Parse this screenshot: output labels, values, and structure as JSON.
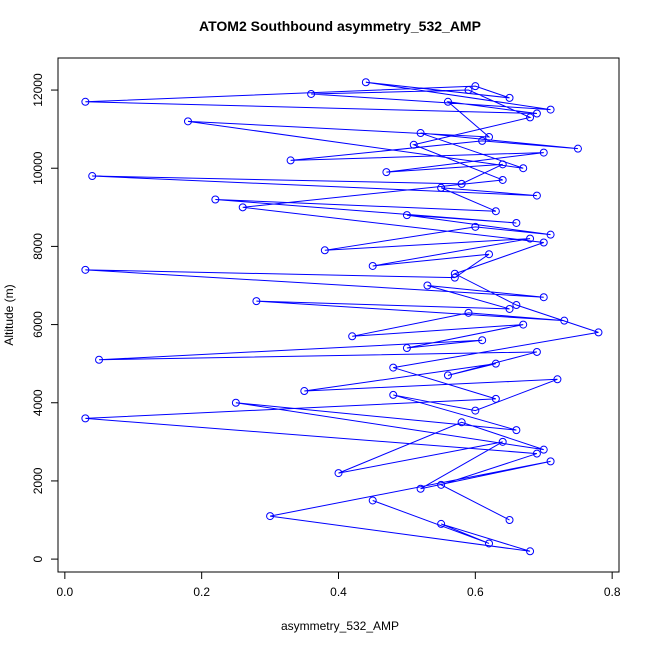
{
  "chart_data": {
    "type": "line",
    "title": "ATOM2 Southbound asymmetry_532_AMP",
    "x_label": "asymmetry_532_AMP",
    "y_label": "Altitude (m)",
    "color": "#0000ff",
    "markers": true,
    "x": [
      0.45,
      0.62,
      0.55,
      0.68,
      0.3,
      0.71,
      0.52,
      0.64,
      0.4,
      0.58,
      0.7,
      0.25,
      0.66,
      0.48,
      0.6,
      0.72,
      0.35,
      0.63,
      0.56,
      0.69,
      0.05,
      0.61,
      0.5,
      0.67,
      0.42,
      0.59,
      0.73,
      0.28,
      0.65,
      0.53,
      0.7,
      0.03,
      0.57,
      0.62,
      0.45,
      0.68,
      0.38,
      0.6,
      0.71,
      0.5,
      0.66,
      0.22,
      0.63,
      0.55,
      0.69,
      0.04,
      0.58,
      0.64,
      0.47,
      0.7,
      0.33,
      0.61,
      0.75,
      0.52,
      0.67,
      0.18,
      0.62,
      0.56,
      0.69,
      0.03,
      0.6,
      0.65,
      0.44,
      0.71,
      0.36,
      0.59,
      0.68,
      0.51,
      0.64,
      0.26,
      0.7,
      0.57,
      0.66,
      0.78,
      0.48,
      0.63,
      0.03,
      0.69,
      0.55,
      0.65
    ],
    "y": [
      1500,
      400,
      900,
      200,
      1100,
      2500,
      1800,
      3000,
      2200,
      3500,
      2800,
      4000,
      3300,
      4200,
      3800,
      4600,
      4300,
      5000,
      4700,
      5300,
      5100,
      5600,
      5400,
      6000,
      5700,
      6300,
      6100,
      6600,
      6400,
      7000,
      6700,
      7400,
      7200,
      7800,
      7500,
      8200,
      7900,
      8500,
      8300,
      8800,
      8600,
      9200,
      8900,
      9500,
      9300,
      9800,
      9600,
      10100,
      9900,
      10400,
      10200,
      10700,
      10500,
      10900,
      10000,
      11200,
      10800,
      11700,
      11400,
      11700,
      12100,
      11800,
      12200,
      11500,
      11900,
      12000,
      11300,
      10600,
      9700,
      9000,
      8100,
      7300,
      6500,
      5800,
      4900,
      4100,
      3600,
      2700,
      1900,
      1000
    ],
    "xlim": [
      -0.01,
      0.81
    ],
    "ylim": [
      -330,
      12820
    ],
    "xticks": [
      {
        "value": 0,
        "label": "0.0"
      },
      0.2,
      0.4,
      0.6,
      0.8
    ],
    "yticks": [
      0,
      2000,
      4000,
      6000,
      8000,
      10000,
      12000
    ]
  }
}
